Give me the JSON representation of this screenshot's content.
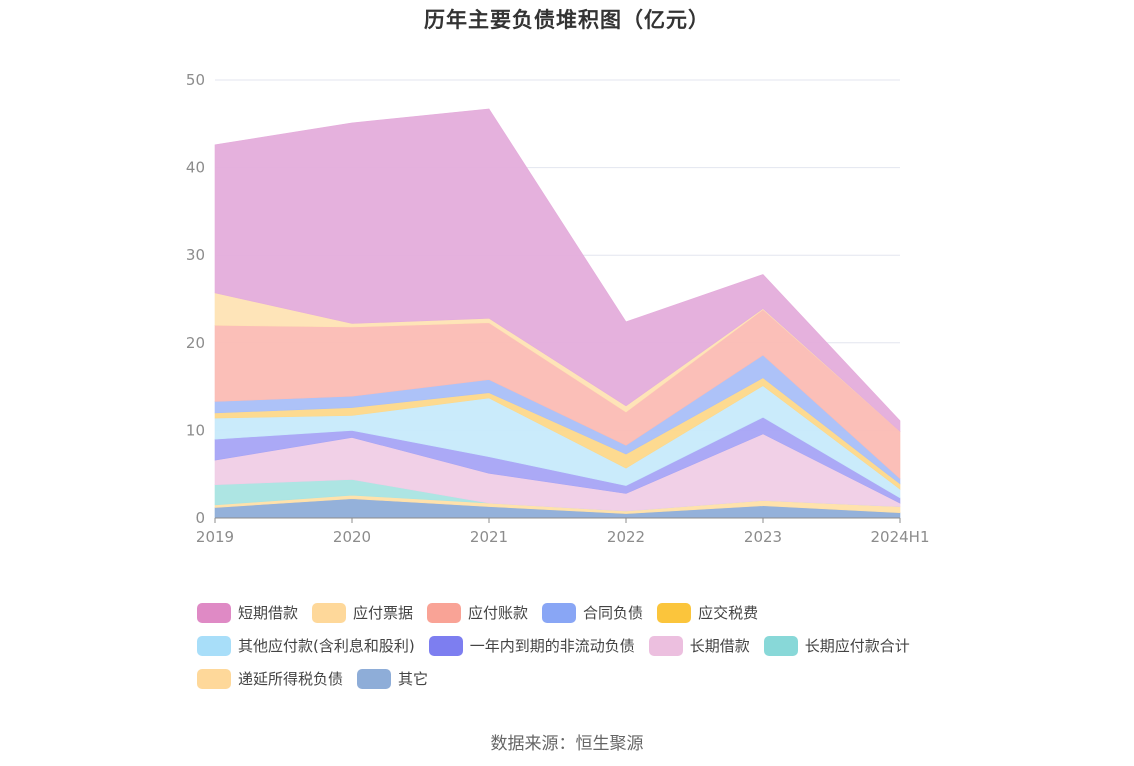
{
  "chart_data": {
    "type": "area",
    "stacked": true,
    "title": "历年主要负债堆积图（亿元）",
    "categories": [
      "2019",
      "2020",
      "2021",
      "2022",
      "2023",
      "2024H1"
    ],
    "ylim": [
      0,
      50
    ],
    "yticks": [
      "0",
      "10",
      "20",
      "30",
      "40",
      "50"
    ],
    "grid": true,
    "legend_position": "bottom",
    "series": [
      {
        "name": "其它",
        "color": "#8eadd8",
        "values": [
          1.2,
          2.2,
          1.3,
          0.5,
          1.4,
          0.6
        ]
      },
      {
        "name": "递延所得税负债",
        "color": "#ffe0a8",
        "values": [
          0.3,
          0.4,
          0.4,
          0.3,
          0.6,
          0.7
        ]
      },
      {
        "name": "长期应付款合计",
        "color": "#a9e4e2",
        "values": [
          2.3,
          1.8,
          0.0,
          0.0,
          0.0,
          0.0
        ]
      },
      {
        "name": "长期借款",
        "color": "#f0cde6",
        "values": [
          2.8,
          4.8,
          3.4,
          2.0,
          7.6,
          0.4
        ]
      },
      {
        "name": "一年内到期的非流动负债",
        "color": "#a6a4f5",
        "values": [
          2.4,
          0.8,
          1.9,
          0.9,
          1.9,
          0.6
        ]
      },
      {
        "name": "其他应付款(含利息和股利)",
        "color": "#c7eafb",
        "values": [
          2.4,
          1.7,
          6.7,
          2.0,
          3.6,
          1.0
        ]
      },
      {
        "name": "应交税费",
        "color": "#fdd88a",
        "values": [
          0.6,
          0.9,
          0.6,
          1.6,
          0.9,
          0.6
        ]
      },
      {
        "name": "合同负债",
        "color": "#a9bff8",
        "values": [
          1.3,
          1.3,
          1.5,
          1.0,
          2.6,
          0.6
        ]
      },
      {
        "name": "应付账款",
        "color": "#fbbcb4",
        "values": [
          8.7,
          7.9,
          6.5,
          3.8,
          5.2,
          5.4
        ]
      },
      {
        "name": "应付票据",
        "color": "#fee3b4",
        "values": [
          3.7,
          0.4,
          0.5,
          0.7,
          0.1,
          0.0
        ]
      },
      {
        "name": "短期借款",
        "color": "#e4addb",
        "values": [
          16.9,
          22.9,
          23.9,
          9.6,
          3.9,
          1.2
        ]
      }
    ]
  },
  "legend": [
    {
      "label": "短期借款",
      "color": "#df8ac5"
    },
    {
      "label": "应付票据",
      "color": "#fed89a"
    },
    {
      "label": "应付账款",
      "color": "#f9a396"
    },
    {
      "label": "合同负债",
      "color": "#89a6f5"
    },
    {
      "label": "应交税费",
      "color": "#fbc53c"
    },
    {
      "label": "其他应付款(含利息和股利)",
      "color": "#a8def9"
    },
    {
      "label": "一年内到期的非流动负债",
      "color": "#7d7ef0"
    },
    {
      "label": "长期借款",
      "color": "#ecbfdf"
    },
    {
      "label": "长期应付款合计",
      "color": "#88d8d8"
    },
    {
      "label": "递延所得税负债",
      "color": "#fed89a"
    },
    {
      "label": "其它",
      "color": "#8eadd8"
    }
  ],
  "source": "数据来源：恒生聚源"
}
